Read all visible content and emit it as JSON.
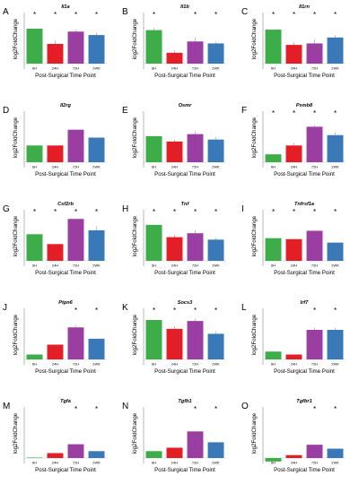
{
  "figure": {
    "ylabel": "log2FoldChange",
    "xlabel": "Post-Surgical Time Point",
    "categories": [
      "6H",
      "24H",
      "72H",
      "2WK"
    ],
    "colors": [
      "#3cad48",
      "#e41e26",
      "#9b3ea2",
      "#3a79b8"
    ],
    "star_symbol": "*"
  },
  "chart_data": [
    {
      "type": "bar",
      "panel": "A",
      "title": "Il1a",
      "categories": [
        "6H",
        "24H",
        "72H",
        "2WK"
      ],
      "values": [
        0.71,
        0.4,
        0.65,
        0.58
      ],
      "errors": [
        0.0,
        0.07,
        0.04,
        0.05
      ],
      "significant": [
        true,
        true,
        true,
        true
      ],
      "xlabel": "Post-Surgical Time Point",
      "ylabel": "log2FoldChange",
      "grid": false
    },
    {
      "type": "bar",
      "panel": "B",
      "title": "Il1b",
      "categories": [
        "6H",
        "24H",
        "72H",
        "2WK"
      ],
      "values": [
        0.68,
        0.22,
        0.45,
        0.41
      ],
      "errors": [
        0.05,
        0.05,
        0.08,
        0.04
      ],
      "significant": [
        true,
        false,
        true,
        true
      ],
      "xlabel": "Post-Surgical Time Point",
      "ylabel": "log2FoldChange",
      "grid": false
    },
    {
      "type": "bar",
      "panel": "C",
      "title": "Il1rn",
      "categories": [
        "6H",
        "24H",
        "72H",
        "2WK"
      ],
      "values": [
        0.69,
        0.38,
        0.41,
        0.53
      ],
      "errors": [
        0.0,
        0.05,
        0.08,
        0.05
      ],
      "significant": [
        true,
        true,
        true,
        true
      ],
      "xlabel": "Post-Surgical Time Point",
      "ylabel": "log2FoldChange",
      "grid": false
    },
    {
      "type": "bar",
      "panel": "D",
      "title": "Il2rg",
      "categories": [
        "6H",
        "24H",
        "72H",
        "2WK"
      ],
      "values": [
        0.34,
        0.34,
        0.66,
        0.5
      ],
      "errors": [
        0.0,
        0.0,
        0.0,
        0.0
      ],
      "significant": [
        false,
        false,
        false,
        false
      ],
      "xlabel": "Post-Surgical Time Point",
      "ylabel": "log2FoldChange",
      "grid": false
    },
    {
      "type": "bar",
      "panel": "E",
      "title": "Osmr",
      "categories": [
        "6H",
        "24H",
        "72H",
        "2WK"
      ],
      "values": [
        0.53,
        0.42,
        0.57,
        0.46
      ],
      "errors": [
        0.0,
        0.04,
        0.06,
        0.05
      ],
      "significant": [
        false,
        false,
        false,
        false
      ],
      "xlabel": "Post-Surgical Time Point",
      "ylabel": "log2FoldChange",
      "grid": false
    },
    {
      "type": "bar",
      "panel": "F",
      "title": "Psmb8",
      "categories": [
        "6H",
        "24H",
        "72H",
        "2WK"
      ],
      "values": [
        0.16,
        0.34,
        0.72,
        0.55
      ],
      "errors": [
        0.0,
        0.05,
        0.03,
        0.05
      ],
      "significant": [
        true,
        true,
        true,
        true
      ],
      "xlabel": "Post-Surgical Time Point",
      "ylabel": "log2FoldChange",
      "grid": false
    },
    {
      "type": "bar",
      "panel": "G",
      "title": "Csf2rb",
      "categories": [
        "6H",
        "24H",
        "72H",
        "2WK"
      ],
      "values": [
        0.54,
        0.34,
        0.85,
        0.62
      ],
      "errors": [
        0.0,
        0.0,
        0.0,
        0.08
      ],
      "significant": [
        true,
        true,
        true,
        true
      ],
      "xlabel": "Post-Surgical Time Point",
      "ylabel": "log2FoldChange",
      "grid": false
    },
    {
      "type": "bar",
      "panel": "H",
      "title": "Tnf",
      "categories": [
        "6H",
        "24H",
        "72H",
        "2WK"
      ],
      "values": [
        0.73,
        0.48,
        0.56,
        0.43
      ],
      "errors": [
        0.0,
        0.05,
        0.06,
        0.04
      ],
      "significant": [
        true,
        true,
        true,
        true
      ],
      "xlabel": "Post-Surgical Time Point",
      "ylabel": "log2FoldChange",
      "grid": false
    },
    {
      "type": "bar",
      "panel": "I",
      "title": "Tnfrsf1a",
      "categories": [
        "6H",
        "24H",
        "72H",
        "2WK"
      ],
      "values": [
        0.46,
        0.44,
        0.61,
        0.37
      ],
      "errors": [
        0.0,
        0.0,
        0.0,
        0.0
      ],
      "significant": [
        true,
        true,
        true,
        true
      ],
      "xlabel": "Post-Surgical Time Point",
      "ylabel": "log2FoldChange",
      "grid": false
    },
    {
      "type": "bar",
      "panel": "J",
      "title": "Ptpn6",
      "categories": [
        "6H",
        "24H",
        "72H",
        "2WK"
      ],
      "values": [
        0.1,
        0.3,
        0.65,
        0.42
      ],
      "errors": [
        0.0,
        0.0,
        0.03,
        0.0
      ],
      "significant": [
        false,
        false,
        true,
        true
      ],
      "xlabel": "Post-Surgical Time Point",
      "ylabel": "log2FoldChange",
      "grid": false
    },
    {
      "type": "bar",
      "panel": "K",
      "title": "Socs3",
      "categories": [
        "6H",
        "24H",
        "72H",
        "2WK"
      ],
      "values": [
        0.8,
        0.62,
        0.78,
        0.52
      ],
      "errors": [
        0.0,
        0.05,
        0.05,
        0.05
      ],
      "significant": [
        true,
        true,
        true,
        true
      ],
      "xlabel": "Post-Surgical Time Point",
      "ylabel": "log2FoldChange",
      "grid": false
    },
    {
      "type": "bar",
      "panel": "L",
      "title": "Irf7",
      "categories": [
        "6H",
        "24H",
        "72H",
        "2WK"
      ],
      "values": [
        0.16,
        0.1,
        0.6,
        0.6
      ],
      "errors": [
        0.0,
        0.0,
        0.05,
        0.04
      ],
      "significant": [
        false,
        false,
        true,
        true
      ],
      "xlabel": "Post-Surgical Time Point",
      "ylabel": "log2FoldChange",
      "grid": false
    },
    {
      "type": "bar",
      "panel": "M",
      "title": "Tgfa",
      "categories": [
        "6H",
        "24H",
        "72H",
        "2WK"
      ],
      "values": [
        0.01,
        0.1,
        0.28,
        0.14
      ],
      "errors": [
        0.0,
        0.0,
        0.0,
        0.0
      ],
      "significant": [
        false,
        false,
        true,
        true
      ],
      "xlabel": "Post-Surgical Time Point",
      "ylabel": "log2FoldChange",
      "grid": false
    },
    {
      "type": "bar",
      "panel": "N",
      "title": "Tgfb1",
      "categories": [
        "6H",
        "24H",
        "72H",
        "2WK"
      ],
      "values": [
        0.14,
        0.21,
        0.54,
        0.32
      ],
      "errors": [
        0.0,
        0.0,
        0.0,
        0.0
      ],
      "significant": [
        false,
        false,
        true,
        true
      ],
      "xlabel": "Post-Surgical Time Point",
      "ylabel": "log2FoldChange",
      "grid": false
    },
    {
      "type": "bar",
      "panel": "O",
      "title": "Tgfbr1",
      "categories": [
        "6H",
        "24H",
        "72H",
        "2WK"
      ],
      "values": [
        -0.07,
        0.06,
        0.27,
        0.19
      ],
      "errors": [
        0.0,
        0.0,
        0.0,
        0.0
      ],
      "significant": [
        false,
        false,
        true,
        true
      ],
      "xlabel": "Post-Surgical Time Point",
      "ylabel": "log2FoldChange",
      "grid": false
    }
  ]
}
